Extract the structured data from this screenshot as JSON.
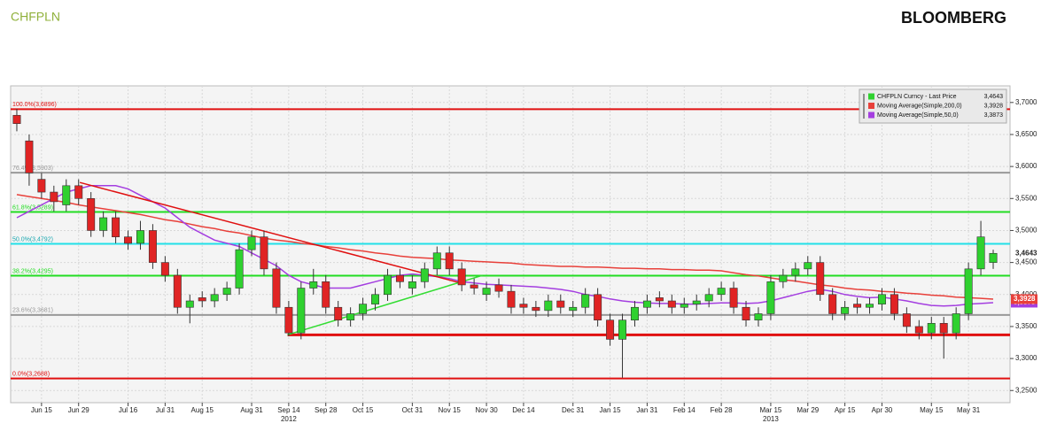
{
  "chart_data": {
    "type": "candlestick",
    "title": "CHFPLN",
    "source": "BLOOMBERG",
    "categories": [
      null,
      null,
      "Jun 15",
      null,
      null,
      "Jun 29",
      null,
      null,
      null,
      "Jul 16",
      null,
      null,
      "Jul 31",
      null,
      null,
      "Aug 15",
      null,
      null,
      null,
      "Aug 31",
      null,
      null,
      "Sep 14",
      null,
      null,
      "Sep 28",
      null,
      null,
      "Oct 15",
      null,
      null,
      null,
      "Oct 31",
      null,
      null,
      "Nov 15",
      null,
      null,
      "Nov 30",
      null,
      null,
      "Dec 14",
      null,
      null,
      null,
      "Dec 31",
      null,
      null,
      "Jan 15",
      null,
      null,
      "Jan 31",
      null,
      null,
      "Feb 14",
      null,
      null,
      "Feb 28",
      null,
      null,
      null,
      "Mar 15",
      null,
      null,
      "Mar 29",
      null,
      null,
      "Apr 15",
      null,
      null,
      "Apr 30",
      null,
      null,
      null,
      "May 15",
      null,
      null,
      "May 31",
      null,
      null
    ],
    "year_labels": [
      {
        "at": 22,
        "label": "2012"
      },
      {
        "at": 61,
        "label": "2013"
      }
    ],
    "series": [
      {
        "name": "CHFPLN Curncy - Last Price",
        "up_color": "#2fd12f",
        "down_color": "#e02424",
        "last_label": "3,4643",
        "open": [
          3.68,
          3.64,
          3.58,
          3.56,
          3.54,
          3.57,
          3.55,
          3.5,
          3.52,
          3.49,
          3.48,
          3.5,
          3.45,
          3.43,
          3.38,
          3.395,
          3.39,
          3.4,
          3.41,
          3.47,
          3.49,
          3.44,
          3.38,
          3.34,
          3.41,
          3.42,
          3.38,
          3.36,
          3.37,
          3.385,
          3.4,
          3.43,
          3.41,
          3.42,
          3.44,
          3.465,
          3.44,
          3.415,
          3.4,
          3.415,
          3.405,
          3.385,
          3.38,
          3.375,
          3.39,
          3.375,
          3.38,
          3.4,
          3.36,
          3.33,
          3.36,
          3.38,
          3.395,
          3.39,
          3.38,
          3.385,
          3.39,
          3.4,
          3.41,
          3.38,
          3.36,
          3.37,
          3.42,
          3.43,
          3.44,
          3.45,
          3.4,
          3.37,
          3.385,
          3.38,
          3.385,
          3.4,
          3.37,
          3.35,
          3.34,
          3.355,
          3.34,
          3.37,
          3.44,
          3.45
        ],
        "high": [
          3.69,
          3.65,
          3.59,
          3.57,
          3.58,
          3.58,
          3.56,
          3.53,
          3.53,
          3.5,
          3.515,
          3.51,
          3.46,
          3.44,
          3.4,
          3.405,
          3.41,
          3.42,
          3.48,
          3.5,
          3.5,
          3.45,
          3.39,
          3.42,
          3.44,
          3.43,
          3.39,
          3.38,
          3.395,
          3.41,
          3.44,
          3.44,
          3.43,
          3.45,
          3.475,
          3.475,
          3.45,
          3.425,
          3.42,
          3.425,
          3.415,
          3.395,
          3.39,
          3.4,
          3.4,
          3.39,
          3.41,
          3.41,
          3.37,
          3.37,
          3.39,
          3.4,
          3.405,
          3.4,
          3.395,
          3.4,
          3.41,
          3.42,
          3.42,
          3.39,
          3.38,
          3.43,
          3.44,
          3.45,
          3.46,
          3.46,
          3.41,
          3.39,
          3.395,
          3.395,
          3.41,
          3.41,
          3.38,
          3.36,
          3.365,
          3.365,
          3.38,
          3.45,
          3.515,
          3.47
        ],
        "low": [
          3.655,
          3.57,
          3.55,
          3.53,
          3.53,
          3.54,
          3.49,
          3.49,
          3.48,
          3.47,
          3.47,
          3.44,
          3.42,
          3.37,
          3.355,
          3.38,
          3.38,
          3.39,
          3.4,
          3.46,
          3.43,
          3.37,
          3.335,
          3.33,
          3.4,
          3.37,
          3.35,
          3.35,
          3.36,
          3.375,
          3.39,
          3.41,
          3.4,
          3.41,
          3.43,
          3.43,
          3.405,
          3.4,
          3.39,
          3.395,
          3.37,
          3.37,
          3.365,
          3.365,
          3.37,
          3.365,
          3.37,
          3.35,
          3.32,
          3.27,
          3.35,
          3.37,
          3.38,
          3.37,
          3.37,
          3.375,
          3.38,
          3.39,
          3.37,
          3.35,
          3.35,
          3.36,
          3.41,
          3.42,
          3.43,
          3.39,
          3.36,
          3.36,
          3.37,
          3.37,
          3.375,
          3.36,
          3.34,
          3.33,
          3.33,
          3.3,
          3.33,
          3.36,
          3.43,
          3.44
        ],
        "close": [
          3.667,
          3.59,
          3.56,
          3.545,
          3.57,
          3.55,
          3.5,
          3.52,
          3.49,
          3.48,
          3.5,
          3.45,
          3.43,
          3.38,
          3.39,
          3.39,
          3.4,
          3.41,
          3.47,
          3.49,
          3.44,
          3.38,
          3.34,
          3.41,
          3.42,
          3.38,
          3.36,
          3.37,
          3.385,
          3.4,
          3.43,
          3.42,
          3.42,
          3.44,
          3.465,
          3.44,
          3.415,
          3.41,
          3.41,
          3.405,
          3.38,
          3.38,
          3.375,
          3.39,
          3.38,
          3.38,
          3.4,
          3.36,
          3.33,
          3.36,
          3.38,
          3.39,
          3.39,
          3.38,
          3.385,
          3.39,
          3.4,
          3.41,
          3.38,
          3.36,
          3.37,
          3.42,
          3.43,
          3.44,
          3.45,
          3.4,
          3.37,
          3.38,
          3.38,
          3.385,
          3.4,
          3.37,
          3.35,
          3.34,
          3.355,
          3.34,
          3.37,
          3.44,
          3.49,
          3.4643
        ]
      },
      {
        "name": "Moving Average(Simple,200,0)",
        "color": "#e8403a",
        "last_label": "3,3928",
        "values": [
          3.556,
          3.553,
          3.55,
          3.547,
          3.544,
          3.54,
          3.537,
          3.534,
          3.531,
          3.528,
          3.525,
          3.521,
          3.517,
          3.514,
          3.51,
          3.506,
          3.503,
          3.499,
          3.496,
          3.492,
          3.488,
          3.485,
          3.483,
          3.48,
          3.478,
          3.475,
          3.473,
          3.47,
          3.468,
          3.465,
          3.463,
          3.46,
          3.458,
          3.457,
          3.456,
          3.454,
          3.453,
          3.452,
          3.451,
          3.45,
          3.449,
          3.447,
          3.446,
          3.445,
          3.444,
          3.444,
          3.443,
          3.443,
          3.442,
          3.441,
          3.441,
          3.44,
          3.44,
          3.439,
          3.439,
          3.438,
          3.438,
          3.437,
          3.434,
          3.431,
          3.429,
          3.426,
          3.423,
          3.421,
          3.418,
          3.415,
          3.413,
          3.41,
          3.408,
          3.407,
          3.405,
          3.404,
          3.402,
          3.401,
          3.399,
          3.398,
          3.396,
          3.395,
          3.394,
          3.3928
        ]
      },
      {
        "name": "Moving Average(Simple,50,0)",
        "color": "#a43ee0",
        "last_label": "3,3873",
        "values": [
          3.52,
          3.53,
          3.54,
          3.55,
          3.56,
          3.565,
          3.57,
          3.57,
          3.57,
          3.565,
          3.555,
          3.545,
          3.535,
          3.52,
          3.505,
          3.495,
          3.485,
          3.48,
          3.475,
          3.465,
          3.455,
          3.445,
          3.43,
          3.42,
          3.415,
          3.41,
          3.41,
          3.41,
          3.415,
          3.42,
          3.425,
          3.43,
          3.432,
          3.43,
          3.428,
          3.425,
          3.42,
          3.418,
          3.416,
          3.415,
          3.414,
          3.413,
          3.412,
          3.41,
          3.408,
          3.405,
          3.4,
          3.397,
          3.393,
          3.39,
          3.388,
          3.387,
          3.386,
          3.386,
          3.385,
          3.385,
          3.386,
          3.387,
          3.387,
          3.386,
          3.387,
          3.39,
          3.395,
          3.4,
          3.405,
          3.408,
          3.405,
          3.4,
          3.397,
          3.395,
          3.396,
          3.393,
          3.39,
          3.386,
          3.383,
          3.382,
          3.383,
          3.385,
          3.386,
          3.3873
        ]
      }
    ],
    "levels": [
      {
        "value": 3.6896,
        "label": "100.0%(3,6896)",
        "color": "#e01010"
      },
      {
        "value": 3.5903,
        "label": "76.4%(3,5903)",
        "color": "#999999"
      },
      {
        "value": 3.5289,
        "label": "61.8%(3,5289)",
        "color": "#22dd22"
      },
      {
        "value": 3.4792,
        "label": "50.0%(3,4792)",
        "color": "#22e0e8"
      },
      {
        "value": 3.4295,
        "label": "38.2%(3,4295)",
        "color": "#22dd22"
      },
      {
        "value": 3.3681,
        "label": "23.6%(3,3681)",
        "color": "#999999"
      },
      {
        "value": 3.337,
        "color": "#e01010",
        "from": 21.9
      },
      {
        "value": 3.2688,
        "label": "0.0%(3,2688)",
        "color": "#e01010"
      }
    ],
    "trendlines": [
      {
        "color": "#e01010",
        "points": [
          [
            5.1,
            3.575
          ],
          [
            35.9,
            3.418
          ]
        ]
      },
      {
        "color": "#33dd33",
        "points": [
          [
            21.9,
            3.337
          ],
          [
            37.7,
            3.43
          ]
        ]
      }
    ],
    "ylim": [
      3.231,
      3.726
    ],
    "yticks": [
      {
        "value": 3.25,
        "label": "3,2500"
      },
      {
        "value": 3.3,
        "label": "3,3000"
      },
      {
        "value": 3.35,
        "label": "3,3500"
      },
      {
        "value": 3.4,
        "label": "3,4000"
      },
      {
        "value": 3.45,
        "label": "3,4500"
      },
      {
        "value": 3.5,
        "label": "3,5000"
      },
      {
        "value": 3.55,
        "label": "3,5500"
      },
      {
        "value": 3.6,
        "label": "3,6000"
      },
      {
        "value": 3.65,
        "label": "3,6500"
      },
      {
        "value": 3.7,
        "label": "3,7000"
      }
    ],
    "grid": true,
    "legend": "top-right"
  }
}
